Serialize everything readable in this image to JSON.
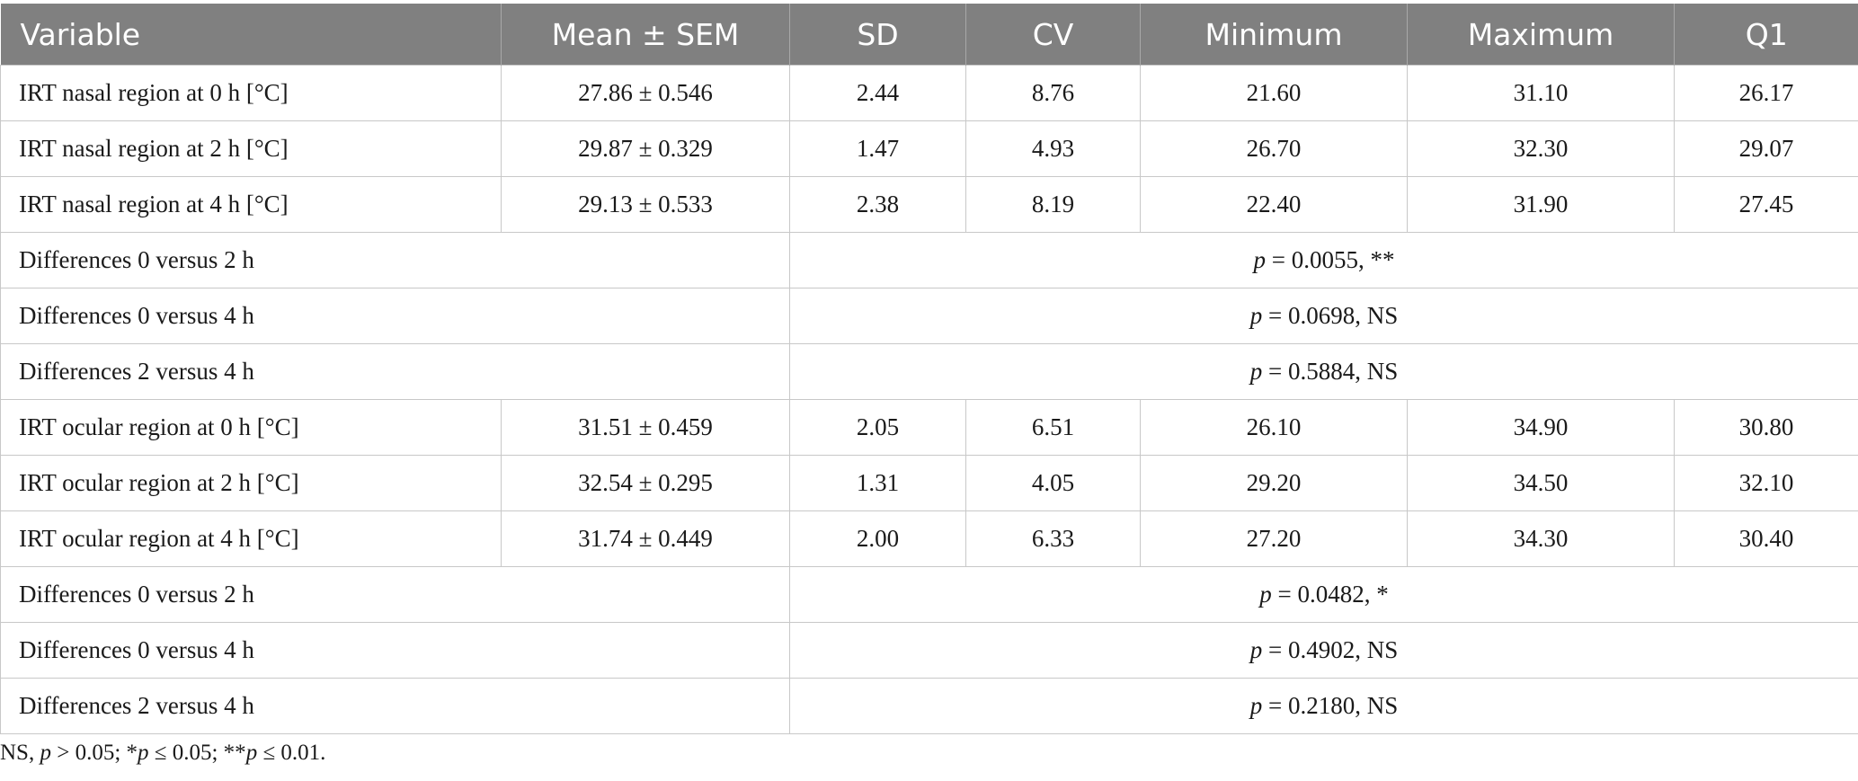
{
  "table": {
    "headers": [
      "Variable",
      "Mean ± SEM",
      "SD",
      "CV",
      "Minimum",
      "Maximum",
      "Q1"
    ],
    "rows": [
      {
        "type": "data",
        "cells": [
          "IRT nasal region at 0 h [°C]",
          "27.86 ± 0.546",
          "2.44",
          "8.76",
          "21.60",
          "31.10",
          "26.17"
        ]
      },
      {
        "type": "data",
        "cells": [
          "IRT nasal region at 2 h [°C]",
          "29.87 ± 0.329",
          "1.47",
          "4.93",
          "26.70",
          "32.30",
          "29.07"
        ]
      },
      {
        "type": "data",
        "cells": [
          "IRT nasal region at 4 h [°C]",
          "29.13 ± 0.533",
          "2.38",
          "8.19",
          "22.40",
          "31.90",
          "27.45"
        ]
      },
      {
        "type": "diff",
        "label": "Differences 0 versus 2 h",
        "p": "p",
        "result": " = 0.0055, **"
      },
      {
        "type": "diff",
        "label": "Differences 0 versus 4 h",
        "p": "p",
        "result": " = 0.0698, NS"
      },
      {
        "type": "diff",
        "label": "Differences 2 versus 4 h",
        "p": "p",
        "result": " = 0.5884, NS"
      },
      {
        "type": "data",
        "cells": [
          "IRT ocular region at 0 h [°C]",
          "31.51 ± 0.459",
          "2.05",
          "6.51",
          "26.10",
          "34.90",
          "30.80"
        ]
      },
      {
        "type": "data",
        "cells": [
          "IRT ocular region at 2 h [°C]",
          "32.54 ± 0.295",
          "1.31",
          "4.05",
          "29.20",
          "34.50",
          "32.10"
        ]
      },
      {
        "type": "data",
        "cells": [
          "IRT ocular region at 4 h [°C]",
          "31.74 ± 0.449",
          "2.00",
          "6.33",
          "27.20",
          "34.30",
          "30.40"
        ]
      },
      {
        "type": "diff",
        "label": "Differences 0 versus 2 h",
        "p": "p",
        "result": " = 0.0482, *"
      },
      {
        "type": "diff",
        "label": "Differences 0 versus 4 h",
        "p": "p",
        "result": " = 0.4902, NS"
      },
      {
        "type": "diff",
        "label": "Differences 2 versus 4 h",
        "p": "p",
        "result": " = 0.2180, NS"
      }
    ]
  },
  "footnote": {
    "parts": [
      {
        "text": "NS, ",
        "italic": false
      },
      {
        "text": "p",
        "italic": true
      },
      {
        "text": " > 0.05; *",
        "italic": false
      },
      {
        "text": "p",
        "italic": true
      },
      {
        "text": " ≤ 0.05; **",
        "italic": false
      },
      {
        "text": "p",
        "italic": true
      },
      {
        "text": " ≤ 0.01.",
        "italic": false
      }
    ]
  },
  "colors": {
    "header_bg": "#808080",
    "header_text": "#ffffff",
    "grid": "#c8c8c8"
  }
}
